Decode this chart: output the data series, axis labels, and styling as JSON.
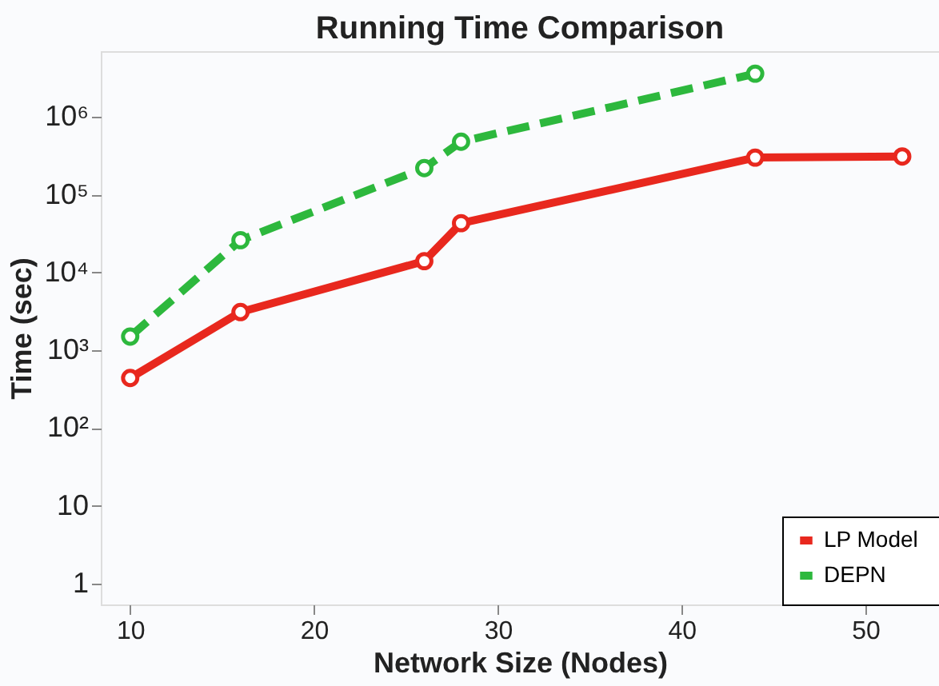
{
  "chart_data": {
    "type": "line",
    "title": "Running Time Comparison",
    "xlabel": "Network Size (Nodes)",
    "ylabel": "Time (sec)",
    "x": [
      10,
      16,
      26,
      28,
      44,
      52
    ],
    "series": [
      {
        "name": "LP  Model",
        "color": "#e8281e",
        "values": [
          440,
          3100,
          14000,
          43000,
          300000,
          310000
        ],
        "line_style": "solid"
      },
      {
        "name": "DEPN",
        "color": "#2db83d",
        "x": [
          10,
          16,
          26,
          28,
          44
        ],
        "values": [
          1500,
          26000,
          220000,
          480000,
          3600000
        ],
        "line_style": "dashed"
      }
    ],
    "log": "y",
    "xlim": [
      8.4,
      54
    ],
    "xticks": [
      10,
      20,
      30,
      40,
      50
    ],
    "ylim": [
      0.54,
      7000000
    ],
    "yticks": [
      1,
      10,
      {
        "value": 100,
        "label": "10²"
      },
      {
        "value": 1000,
        "label": "10³"
      },
      {
        "value": 10000,
        "label": "10⁴"
      },
      {
        "value": 100000,
        "label": "10⁵"
      },
      {
        "value": 1000000,
        "label": "10⁶"
      }
    ],
    "grid": false,
    "legend": "bottom right",
    "marker": "circle"
  }
}
